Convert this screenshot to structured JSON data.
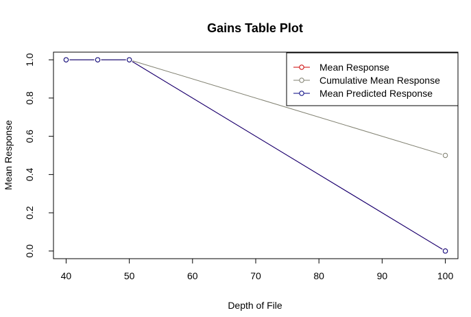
{
  "chart_data": {
    "type": "line",
    "title": "Gains Table Plot",
    "xlabel": "Depth of File",
    "ylabel": "Mean Response",
    "xlim": [
      38,
      102
    ],
    "ylim": [
      -0.04,
      1.04
    ],
    "x_ticks": [
      40,
      50,
      60,
      70,
      80,
      90,
      100
    ],
    "y_ticks": [
      0.0,
      0.2,
      0.4,
      0.6,
      0.8,
      1.0
    ],
    "y_tick_labels": [
      "0.0",
      "0.2",
      "0.4",
      "0.6",
      "0.8",
      "1.0"
    ],
    "grid": false,
    "legend_position": "top-right",
    "x": [
      40,
      45,
      50,
      100
    ],
    "series": [
      {
        "name": "Mean Response",
        "color": "#cc0000",
        "values": [
          1.0,
          1.0,
          1.0,
          0.0
        ]
      },
      {
        "name": "Cumulative Mean Response",
        "color": "#7f7f6f",
        "values": [
          1.0,
          1.0,
          1.0,
          0.5
        ]
      },
      {
        "name": "Mean Predicted Response",
        "color": "#00007f",
        "values": [
          1.0,
          1.0,
          1.0,
          0.0
        ]
      }
    ]
  }
}
